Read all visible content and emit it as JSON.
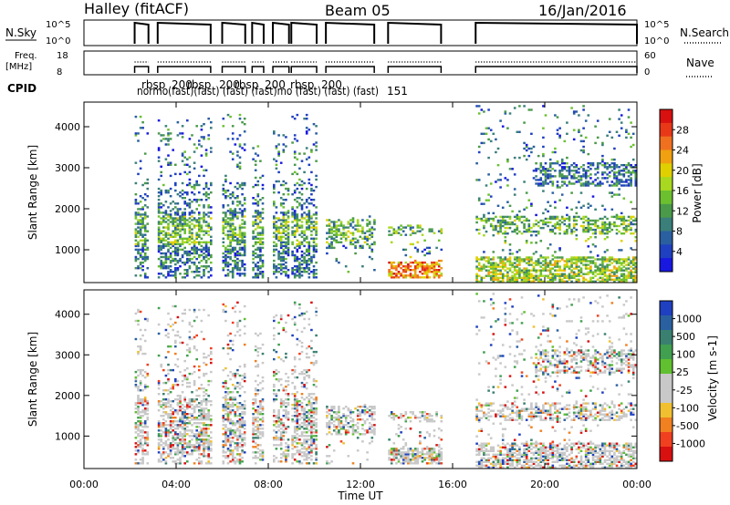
{
  "header": {
    "station": "Halley (fitACF)",
    "beam": "Beam 05",
    "date": "16/Jan/2016"
  },
  "strip_labels": {
    "nsky": "N.Sky",
    "nsky_ticks": [
      "10^5",
      "10^0"
    ],
    "nsearch": "N.Search",
    "nsearch_ticks": [
      "10^5",
      "10^0"
    ],
    "freq_line1": "Freq.",
    "freq_line2": "[MHz]",
    "freq_ticks": [
      "18",
      "8"
    ],
    "nave": "Nave",
    "nave_ticks": [
      "60",
      "0"
    ],
    "cpid": "CPID"
  },
  "cpid_labels": {
    "top": [
      "rbsp",
      "200",
      "rbsp",
      "200",
      "rbsp",
      "200",
      "rbsp",
      "200"
    ],
    "mid": "normo(fast)(fast) (fast) (fast)mo (fast) (fast) (fast)",
    "code": "151"
  },
  "color_power": [
    "#1818e0",
    "#1f40c0",
    "#2a5fa0",
    "#3a7f7a",
    "#4a9a4a",
    "#6cc030",
    "#a8d820",
    "#e0d000",
    "#f0a010",
    "#f07020",
    "#e83818",
    "#d81010"
  ],
  "color_vel": [
    "#d81010",
    "#f04020",
    "#f08020",
    "#f0c030",
    "#c8c8c8",
    "#c8c8c8",
    "#60c030",
    "#40a050",
    "#3a8070",
    "#2a60a0",
    "#1f40c0"
  ],
  "chart_data": [
    {
      "type": "heatmap",
      "name": "power",
      "ylabel": "Slant Range [km]",
      "y_ticks": [
        "1000",
        "2000",
        "3000",
        "4000"
      ],
      "y_values": [
        1000,
        2000,
        3000,
        4000
      ],
      "ylim": [
        200,
        4600
      ],
      "xlim": [
        0,
        24
      ],
      "colorbar_label": "Power [dB]",
      "colorbar_ticks": [
        "4",
        "8",
        "12",
        "16",
        "20",
        "24",
        "28"
      ]
    },
    {
      "type": "heatmap",
      "name": "velocity",
      "ylabel": "Slant Range [km]",
      "xlabel": "Time UT",
      "x_ticks": [
        "00:00",
        "04:00",
        "08:00",
        "12:00",
        "16:00",
        "20:00",
        "00:00"
      ],
      "x_values": [
        0,
        4,
        8,
        12,
        16,
        20,
        24
      ],
      "y_ticks": [
        "1000",
        "2000",
        "3000",
        "4000"
      ],
      "y_values": [
        1000,
        2000,
        3000,
        4000
      ],
      "ylim": [
        200,
        4600
      ],
      "xlim": [
        0,
        24
      ],
      "colorbar_label": "Velocity [m s-1]",
      "colorbar_ticks": [
        "1000",
        "500",
        "100",
        "25",
        "-25",
        "-100",
        "-500",
        "-1000"
      ]
    }
  ],
  "scatter_segments": [
    {
      "t0": 2.2,
      "t1": 2.8,
      "rmin": 300,
      "rmax": 4300
    },
    {
      "t0": 3.2,
      "t1": 5.5,
      "rmin": 300,
      "rmax": 4200
    },
    {
      "t0": 6.0,
      "t1": 7.0,
      "rmin": 300,
      "rmax": 4300
    },
    {
      "t0": 7.3,
      "t1": 7.8,
      "rmin": 300,
      "rmax": 3500
    },
    {
      "t0": 8.2,
      "t1": 8.9,
      "rmin": 300,
      "rmax": 4000
    },
    {
      "t0": 9.0,
      "t1": 10.1,
      "rmin": 300,
      "rmax": 4300
    },
    {
      "t0": 10.5,
      "t1": 12.6,
      "rmin": 300,
      "rmax": 1800
    },
    {
      "t0": 13.2,
      "t1": 15.5,
      "rmin": 300,
      "rmax": 1600
    },
    {
      "t0": 17.0,
      "t1": 24.0,
      "rmin": 200,
      "rmax": 4500
    }
  ]
}
